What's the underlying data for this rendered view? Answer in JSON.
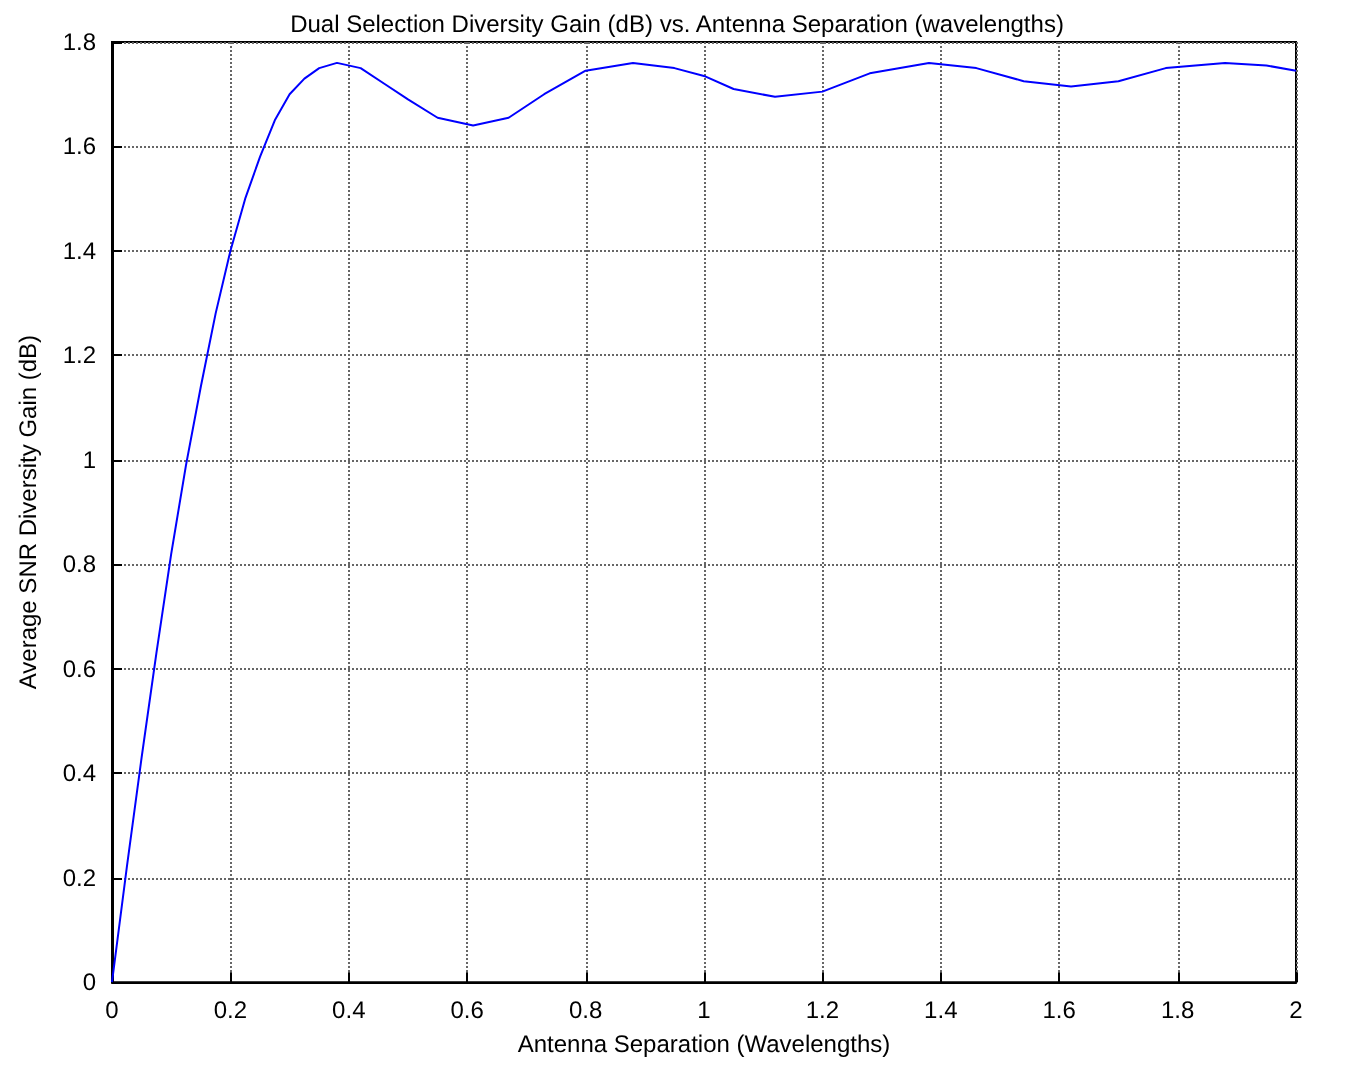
{
  "chart_data": {
    "type": "line",
    "title": "Dual Selection Diversity Gain (dB) vs. Antenna Separation (wavelengths)",
    "xlabel": "Antenna Separation (Wavelengths)",
    "ylabel": "Average SNR Diversity Gain (dB)",
    "x": [
      0,
      0.025,
      0.05,
      0.075,
      0.1,
      0.125,
      0.15,
      0.175,
      0.2,
      0.225,
      0.25,
      0.275,
      0.3,
      0.325,
      0.35,
      0.38,
      0.42,
      0.46,
      0.5,
      0.55,
      0.61,
      0.67,
      0.73,
      0.8,
      0.88,
      0.95,
      1.0,
      1.05,
      1.12,
      1.2,
      1.28,
      1.38,
      1.46,
      1.54,
      1.62,
      1.7,
      1.78,
      1.88,
      1.95,
      2.0
    ],
    "series": [
      {
        "color": "#0000ff",
        "values": [
          0,
          0.22,
          0.43,
          0.63,
          0.82,
          0.99,
          1.14,
          1.28,
          1.4,
          1.5,
          1.58,
          1.65,
          1.7,
          1.73,
          1.75,
          1.76,
          1.75,
          1.72,
          1.69,
          1.655,
          1.64,
          1.655,
          1.7,
          1.745,
          1.76,
          1.75,
          1.735,
          1.71,
          1.695,
          1.705,
          1.74,
          1.76,
          1.75,
          1.725,
          1.715,
          1.725,
          1.75,
          1.76,
          1.755,
          1.745
        ]
      }
    ],
    "xlim": [
      0,
      2
    ],
    "xticks": [
      0,
      0.2,
      0.4,
      0.6,
      0.8,
      1,
      1.2,
      1.4,
      1.6,
      1.8,
      2
    ],
    "ylim": [
      0,
      1.8
    ],
    "yticks": [
      0,
      0.2,
      0.4,
      0.6,
      0.8,
      1,
      1.2,
      1.4,
      1.6,
      1.8
    ],
    "grid": true,
    "line_style": "solid"
  }
}
